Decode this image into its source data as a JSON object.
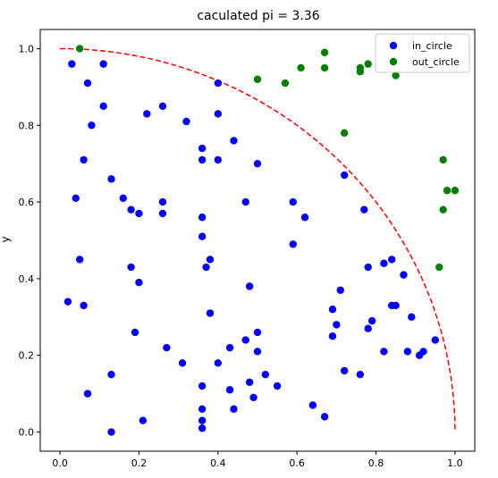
{
  "chart_data": {
    "type": "scatter",
    "title": "caculated pi = 3.36",
    "xlabel": "",
    "ylabel": "y",
    "xlim": [
      -0.05,
      1.05
    ],
    "ylim": [
      -0.05,
      1.05
    ],
    "xticks": [
      "0.0",
      "0.2",
      "0.4",
      "0.6",
      "0.8",
      "1.0"
    ],
    "yticks": [
      "0.0",
      "0.2",
      "0.4",
      "0.6",
      "0.8",
      "1.0"
    ],
    "grid": false,
    "legend_position": "top-right",
    "quarter_circle": {
      "color": "#ff0000",
      "style": "dashed",
      "radius": 1.0
    },
    "series": [
      {
        "name": "in_circle",
        "color": "#0000ff",
        "points": [
          [
            0.03,
            0.96
          ],
          [
            0.07,
            0.91
          ],
          [
            0.11,
            0.96
          ],
          [
            0.08,
            0.8
          ],
          [
            0.11,
            0.85
          ],
          [
            0.06,
            0.71
          ],
          [
            0.13,
            0.66
          ],
          [
            0.04,
            0.61
          ],
          [
            0.05,
            0.45
          ],
          [
            0.06,
            0.33
          ],
          [
            0.02,
            0.34
          ],
          [
            0.07,
            0.1
          ],
          [
            0.13,
            0.15
          ],
          [
            0.13,
            0.0
          ],
          [
            0.16,
            0.61
          ],
          [
            0.18,
            0.58
          ],
          [
            0.2,
            0.57
          ],
          [
            0.18,
            0.43
          ],
          [
            0.2,
            0.39
          ],
          [
            0.19,
            0.26
          ],
          [
            0.21,
            0.03
          ],
          [
            0.22,
            0.83
          ],
          [
            0.26,
            0.85
          ],
          [
            0.26,
            0.6
          ],
          [
            0.26,
            0.57
          ],
          [
            0.27,
            0.22
          ],
          [
            0.32,
            0.81
          ],
          [
            0.31,
            0.18
          ],
          [
            0.36,
            0.74
          ],
          [
            0.36,
            0.71
          ],
          [
            0.4,
            0.71
          ],
          [
            0.4,
            0.91
          ],
          [
            0.4,
            0.83
          ],
          [
            0.44,
            0.76
          ],
          [
            0.36,
            0.56
          ],
          [
            0.36,
            0.51
          ],
          [
            0.38,
            0.45
          ],
          [
            0.37,
            0.43
          ],
          [
            0.38,
            0.31
          ],
          [
            0.4,
            0.18
          ],
          [
            0.36,
            0.12
          ],
          [
            0.36,
            0.06
          ],
          [
            0.36,
            0.03
          ],
          [
            0.36,
            0.01
          ],
          [
            0.43,
            0.22
          ],
          [
            0.43,
            0.11
          ],
          [
            0.44,
            0.06
          ],
          [
            0.47,
            0.6
          ],
          [
            0.48,
            0.38
          ],
          [
            0.47,
            0.24
          ],
          [
            0.48,
            0.13
          ],
          [
            0.5,
            0.7
          ],
          [
            0.5,
            0.26
          ],
          [
            0.5,
            0.21
          ],
          [
            0.49,
            0.09
          ],
          [
            0.52,
            0.15
          ],
          [
            0.55,
            0.12
          ],
          [
            0.59,
            0.6
          ],
          [
            0.59,
            0.49
          ],
          [
            0.62,
            0.56
          ],
          [
            0.64,
            0.07
          ],
          [
            0.67,
            0.04
          ],
          [
            0.69,
            0.32
          ],
          [
            0.7,
            0.28
          ],
          [
            0.69,
            0.25
          ],
          [
            0.71,
            0.37
          ],
          [
            0.72,
            0.67
          ],
          [
            0.72,
            0.16
          ],
          [
            0.77,
            0.58
          ],
          [
            0.76,
            0.15
          ],
          [
            0.78,
            0.43
          ],
          [
            0.79,
            0.29
          ],
          [
            0.78,
            0.27
          ],
          [
            0.82,
            0.44
          ],
          [
            0.84,
            0.45
          ],
          [
            0.82,
            0.21
          ],
          [
            0.84,
            0.33
          ],
          [
            0.85,
            0.33
          ],
          [
            0.87,
            0.41
          ],
          [
            0.89,
            0.3
          ],
          [
            0.88,
            0.21
          ],
          [
            0.91,
            0.2
          ],
          [
            0.92,
            0.21
          ],
          [
            0.95,
            0.24
          ]
        ]
      },
      {
        "name": "out_circle",
        "color": "#008000",
        "points": [
          [
            0.05,
            1.0
          ],
          [
            0.5,
            0.92
          ],
          [
            0.57,
            0.91
          ],
          [
            0.61,
            0.95
          ],
          [
            0.67,
            0.99
          ],
          [
            0.67,
            0.95
          ],
          [
            0.76,
            0.95
          ],
          [
            0.76,
            0.94
          ],
          [
            0.78,
            0.96
          ],
          [
            0.85,
            0.93
          ],
          [
            0.72,
            0.78
          ],
          [
            0.97,
            0.71
          ],
          [
            0.98,
            0.63
          ],
          [
            1.0,
            0.63
          ],
          [
            0.97,
            0.58
          ],
          [
            0.96,
            0.43
          ]
        ]
      }
    ]
  }
}
